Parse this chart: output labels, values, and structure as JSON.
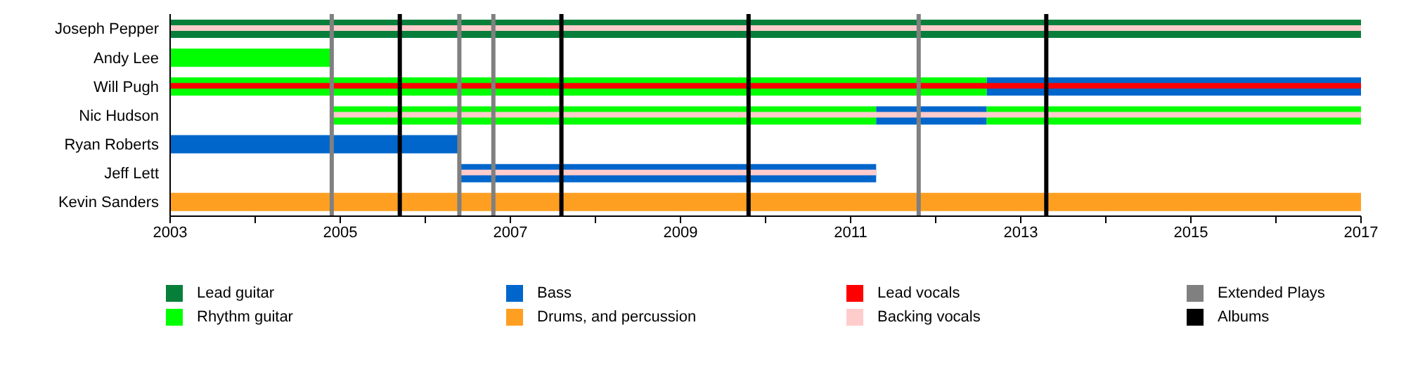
{
  "chart_data": {
    "type": "bar",
    "orientation": "horizontal",
    "categories": [
      "Joseph Pepper",
      "Andy Lee",
      "Will Pugh",
      "Nic Hudson",
      "Ryan Roberts",
      "Jeff Lett",
      "Kevin Sanders"
    ],
    "series": [
      {
        "name": "Lead guitar",
        "color": "#077f3a",
        "base": [
          2003,
          null,
          null,
          null,
          null,
          null,
          null
        ],
        "values": [
          14,
          null,
          null,
          null,
          null,
          null,
          null
        ]
      },
      {
        "name": "Rhythm guitar",
        "color": "#00ff00",
        "base": [
          null,
          2003,
          2003,
          2004.9,
          null,
          null,
          null
        ],
        "values": [
          null,
          1.9,
          9.6,
          6.4,
          null,
          null,
          null
        ]
      },
      {
        "name": "Bass",
        "color": "#0066cc",
        "base": [
          null,
          null,
          2012.6,
          2011.3,
          2003,
          2006.4,
          null
        ],
        "values": [
          null,
          null,
          4.4,
          1.3,
          3.4,
          4.9,
          null
        ]
      },
      {
        "name": "Drums, and percussion",
        "color": "#ff9f22",
        "base": [
          null,
          null,
          null,
          null,
          null,
          null,
          2003
        ],
        "values": [
          null,
          null,
          null,
          null,
          null,
          null,
          14
        ]
      },
      {
        "color": "#00ff00",
        "base": [
          null,
          null,
          null,
          2012.6,
          null,
          null,
          null
        ],
        "values": [
          null,
          null,
          null,
          4.4,
          null,
          null,
          null
        ]
      },
      {
        "name": "Lead vocals",
        "color": "#ff0000",
        "base": [
          null,
          null,
          2003,
          null,
          null,
          null,
          null
        ],
        "values": [
          null,
          null,
          14,
          null,
          null,
          null,
          null
        ]
      },
      {
        "name": "Backing vocals",
        "color": "#ffcccc",
        "base": [
          2003,
          null,
          null,
          2004.9,
          null,
          2006.4,
          null
        ],
        "values": [
          14,
          null,
          null,
          12.1,
          null,
          4.9,
          null
        ]
      }
    ],
    "xlim": [
      2003,
      2017
    ],
    "xticks": [
      2003,
      {
        "value": 2004,
        "label": null
      },
      2005,
      {
        "value": 2006,
        "label": null
      },
      2007,
      {
        "value": 2008,
        "label": null
      },
      2009,
      {
        "value": 2010,
        "label": null
      },
      2011,
      {
        "value": 2012,
        "label": null
      },
      2013,
      {
        "value": 2014,
        "label": null
      },
      2015,
      {
        "value": 2016,
        "label": null
      },
      2017
    ],
    "ref_lines": [
      {
        "axis": "x",
        "value": 2004.9,
        "label": "Extended Plays",
        "color": "#808080"
      },
      {
        "axis": "x",
        "value": 2006.4,
        "label": null,
        "color": "#808080"
      },
      {
        "axis": "x",
        "value": 2006.8,
        "label": null,
        "color": "#808080"
      },
      {
        "axis": "x",
        "value": 2011.8,
        "label": null,
        "color": "#808080"
      },
      {
        "axis": "x",
        "value": 2005.7,
        "label": "Albums",
        "color": "#000000"
      },
      {
        "axis": "x",
        "value": 2007.6,
        "label": null,
        "color": "#000000"
      },
      {
        "axis": "x",
        "value": 2009.8,
        "label": null,
        "color": "#000000"
      },
      {
        "axis": "x",
        "value": 2013.3,
        "label": null,
        "color": "#000000"
      }
    ],
    "legend": "bottom"
  }
}
